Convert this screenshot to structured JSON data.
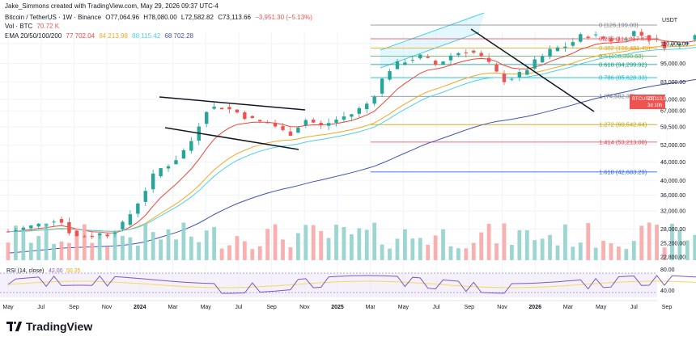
{
  "credit": "Jake_Simmons created with TradingView.com, May 29, 2026 09:37 UTC-4",
  "symbol": {
    "name": "Bitcoin / TetherUS · 1W · Binance",
    "open": "O77,064.96",
    "high": "H78,080.00",
    "low": "L72,582.82",
    "close": "C73,113.66",
    "change": "−3,951.30 (−5.13%)",
    "volume_label": "Vol · BTC",
    "volume_value": "70.72 K",
    "ema_label": "EMA 20/50/100/200",
    "ema_values": [
      "77,702.04",
      "84,213.98",
      "88,115.42",
      "68,702.28"
    ]
  },
  "colors": {
    "up": "#26a69a",
    "down": "#ef5350",
    "ema20": "#f44336",
    "ema50": "#f5a623",
    "ema100": "#4dd0e1",
    "ema200": "#3f51b5",
    "rsi": "#7e57c2",
    "rsi_ma": "#f9d85c"
  },
  "chart_data": {
    "type": "candlestick",
    "price_axis": {
      "label": "USDT",
      "scale": "log",
      "ticks": [
        "110,000.00",
        "95,000.00",
        "83,000.00",
        "73,000.00",
        "67,000.00",
        "59,500.00",
        "52,000.00",
        "46,000.00",
        "40,000.00",
        "36,000.00",
        "32,000.00",
        "28,000.00",
        "25,200.00",
        "22,800.00"
      ],
      "current_label": "BTCUSDT",
      "current_price": "73,113.66",
      "countdown": "3d 10h"
    },
    "time_axis": [
      "May",
      "Jul",
      "Sep",
      "Nov",
      "2024",
      "Mar",
      "May",
      "Jul",
      "Sep",
      "Nov",
      "2025",
      "Mar",
      "May",
      "Jul",
      "Sep",
      "Nov",
      "2026",
      "Mar",
      "May",
      "Jul",
      "Sep"
    ],
    "fib_levels": [
      {
        "ratio": "0",
        "label": "0 (126,199.00)",
        "price": 126199,
        "color": "#787b86"
      },
      {
        "ratio": "0.236",
        "label": "0.236 (114,017.47)",
        "price": 114017.47,
        "color": "#f23645"
      },
      {
        "ratio": "0.382",
        "label": "0.382 (106,481.45)",
        "price": 106481.45,
        "color": "#ff9800"
      },
      {
        "ratio": "0.5",
        "label": "0.5 (100,390.68)",
        "price": 100390.68,
        "color": "#4caf50"
      },
      {
        "ratio": "0.618",
        "label": "0.618 (94,299.92)",
        "price": 94299.92,
        "color": "#089981"
      },
      {
        "ratio": "0.786",
        "label": "0.786 (85,628.33)",
        "price": 85628.33,
        "color": "#00bcd4"
      },
      {
        "ratio": "1",
        "label": "1 (74,582.37)",
        "price": 74582.37,
        "color": "#787b86"
      },
      {
        "ratio": "1.272",
        "label": "1.272 (60,542.64)",
        "price": 60542.64,
        "color": "#c8a200"
      },
      {
        "ratio": "1.414",
        "label": "1.414 (53,213.08)",
        "price": 53213.08,
        "color": "#f23645"
      },
      {
        "ratio": "1.618",
        "label": "1.618 (42,683.29)",
        "price": 42683.29,
        "color": "#2962ff"
      }
    ],
    "rsi": {
      "label": "RSI (14, close)",
      "value": "42.00",
      "ma_value": "50.35",
      "ticks": [
        "80.00",
        "40.00"
      ]
    }
  },
  "brand": "TradingView"
}
